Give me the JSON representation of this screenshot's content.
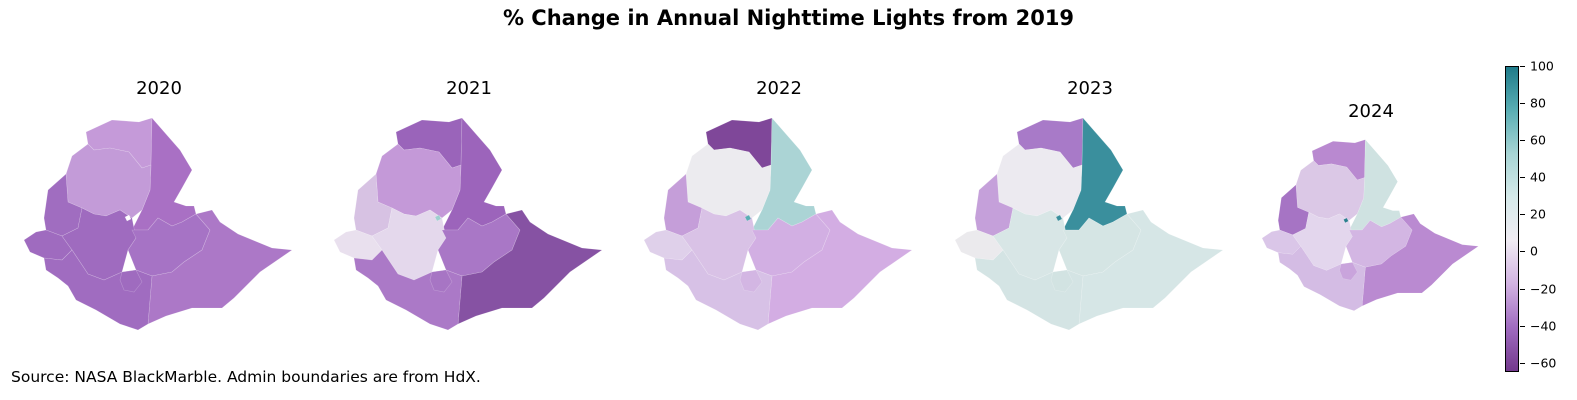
{
  "title": "% Change in Annual Nighttime Lights from 2019",
  "source": "Source: NASA BlackMarble. Admin boundaries are from HdX.",
  "colorbar": {
    "min": -65,
    "max": 100,
    "ticks": [
      100,
      80,
      60,
      40,
      20,
      0,
      -20,
      -40,
      -60
    ],
    "colors": [
      "#73398d",
      "#a06cc0",
      "#d2b3e2",
      "#f0ecf3",
      "#d6eaea",
      "#a8d5d5",
      "#5aaeb4",
      "#1f7b8a"
    ]
  },
  "panels": [
    {
      "year": "2020",
      "regions": {
        "tigray": "#c59ad9",
        "afar": "#a970c4",
        "amhara": "#c39bd8",
        "benishangul": "#a06dc0",
        "gambela": "#9f6bbf",
        "oromia_w": "#9f6bbf",
        "oromia_e": "#a673c5",
        "somali": "#ac78c7",
        "snnp": "#a06cc0",
        "sidama": "#9f6bbf",
        "addis": "#ffffff"
      }
    },
    {
      "year": "2021",
      "regions": {
        "tigray": "#9a64ba",
        "afar": "#9c64bb",
        "amhara": "#c499d8",
        "benishangul": "#d7c2e3",
        "gambela": "#e9e0ee",
        "oromia_w": "#e4d8ec",
        "oromia_e": "#a977c6",
        "somali": "#8652a3",
        "snnp": "#ab79c7",
        "sidama": "#a775c4",
        "addis": "#9ed0cf"
      }
    },
    {
      "year": "2022",
      "regions": {
        "tigray": "#7f4799",
        "afar": "#abd4d5",
        "amhara": "#ecebef",
        "benishangul": "#c59ed9",
        "gambela": "#dfd0ea",
        "oromia_w": "#d9c2e6",
        "oromia_e": "#d2afe3",
        "somali": "#d3ade3",
        "snnp": "#d7c1e6",
        "sidama": "#d3b6e3",
        "addis": "#5aaeb4"
      }
    },
    {
      "year": "2023",
      "regions": {
        "tigray": "#a87ac8",
        "afar": "#3a8f9d",
        "amhara": "#eceaf0",
        "benishangul": "#c5a0da",
        "gambela": "#ebeaed",
        "oromia_w": "#d8e6e6",
        "oromia_e": "#d5e5e4",
        "somali": "#d6e6e6",
        "snnp": "#d4e4e4",
        "sidama": "#d2e3e2",
        "addis": "#3a8f9d"
      }
    },
    {
      "year": "2024",
      "regions": {
        "tigray": "#b989d0",
        "afar": "#cfe2e1",
        "amhara": "#dbc8e6",
        "benishangul": "#a674c4",
        "gambela": "#dac6e8",
        "oromia_w": "#e3d6ed",
        "oromia_e": "#d3b6e3",
        "somali": "#ba8ad1",
        "snnp": "#d4bce4",
        "sidama": "#c9a4dc",
        "addis": "#2a7f8e"
      }
    }
  ]
}
